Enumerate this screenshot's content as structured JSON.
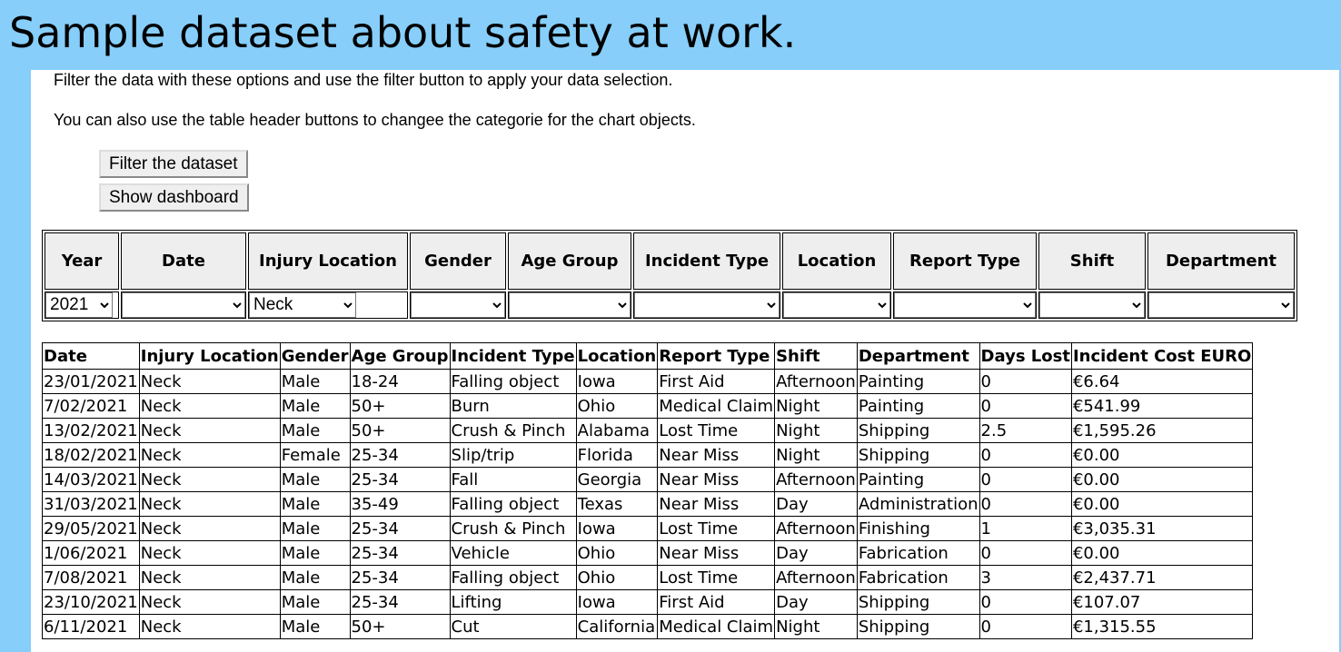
{
  "page_title": "Sample dataset about safety at work.",
  "intro": {
    "line1": "Filter the data with these options and use the filter button to apply your data selection.",
    "line2": "You can also use the table header buttons to changee the categorie for the chart objects."
  },
  "buttons": {
    "filter": "Filter the dataset",
    "dashboard": "Show dashboard"
  },
  "filters": {
    "headers": [
      "Year",
      "Date",
      "Injury Location",
      "Gender",
      "Age Group",
      "Incident Type",
      "Location",
      "Report Type",
      "Shift",
      "Department"
    ],
    "selected": [
      "2021",
      "",
      "Neck",
      "",
      "",
      "",
      "",
      "",
      "",
      ""
    ]
  },
  "table": {
    "columns": [
      "Date",
      "Injury Location",
      "Gender",
      "Age Group",
      "Incident Type",
      "Location",
      "Report Type",
      "Shift",
      "Department",
      "Days Lost",
      "Incident Cost EURO"
    ],
    "rows": [
      [
        "23/01/2021",
        "Neck",
        "Male",
        "18-24",
        "Falling object",
        "Iowa",
        "First Aid",
        "Afternoon",
        "Painting",
        "0",
        "€6.64"
      ],
      [
        "7/02/2021",
        "Neck",
        "Male",
        "50+",
        "Burn",
        "Ohio",
        "Medical Claim",
        "Night",
        "Painting",
        "0",
        "€541.99"
      ],
      [
        "13/02/2021",
        "Neck",
        "Male",
        "50+",
        "Crush & Pinch",
        "Alabama",
        "Lost Time",
        "Night",
        "Shipping",
        "2.5",
        "€1,595.26"
      ],
      [
        "18/02/2021",
        "Neck",
        "Female",
        "25-34",
        "Slip/trip",
        "Florida",
        "Near Miss",
        "Night",
        "Shipping",
        "0",
        "€0.00"
      ],
      [
        "14/03/2021",
        "Neck",
        "Male",
        "25-34",
        "Fall",
        "Georgia",
        "Near Miss",
        "Afternoon",
        "Painting",
        "0",
        "€0.00"
      ],
      [
        "31/03/2021",
        "Neck",
        "Male",
        "35-49",
        "Falling object",
        "Texas",
        "Near Miss",
        "Day",
        "Administration",
        "0",
        "€0.00"
      ],
      [
        "29/05/2021",
        "Neck",
        "Male",
        "25-34",
        "Crush & Pinch",
        "Iowa",
        "Lost Time",
        "Afternoon",
        "Finishing",
        "1",
        "€3,035.31"
      ],
      [
        "1/06/2021",
        "Neck",
        "Male",
        "25-34",
        "Vehicle",
        "Ohio",
        "Near Miss",
        "Day",
        "Fabrication",
        "0",
        "€0.00"
      ],
      [
        "7/08/2021",
        "Neck",
        "Male",
        "25-34",
        "Falling object",
        "Ohio",
        "Lost Time",
        "Afternoon",
        "Fabrication",
        "3",
        "€2,437.71"
      ],
      [
        "23/10/2021",
        "Neck",
        "Male",
        "25-34",
        "Lifting",
        "Iowa",
        "First Aid",
        "Day",
        "Shipping",
        "0",
        "€107.07"
      ],
      [
        "6/11/2021",
        "Neck",
        "Male",
        "50+",
        "Cut",
        "California",
        "Medical Claim",
        "Night",
        "Shipping",
        "0",
        "€1,315.55"
      ]
    ]
  },
  "colors": {
    "background": "#87cefa",
    "panel": "#ffffff"
  }
}
